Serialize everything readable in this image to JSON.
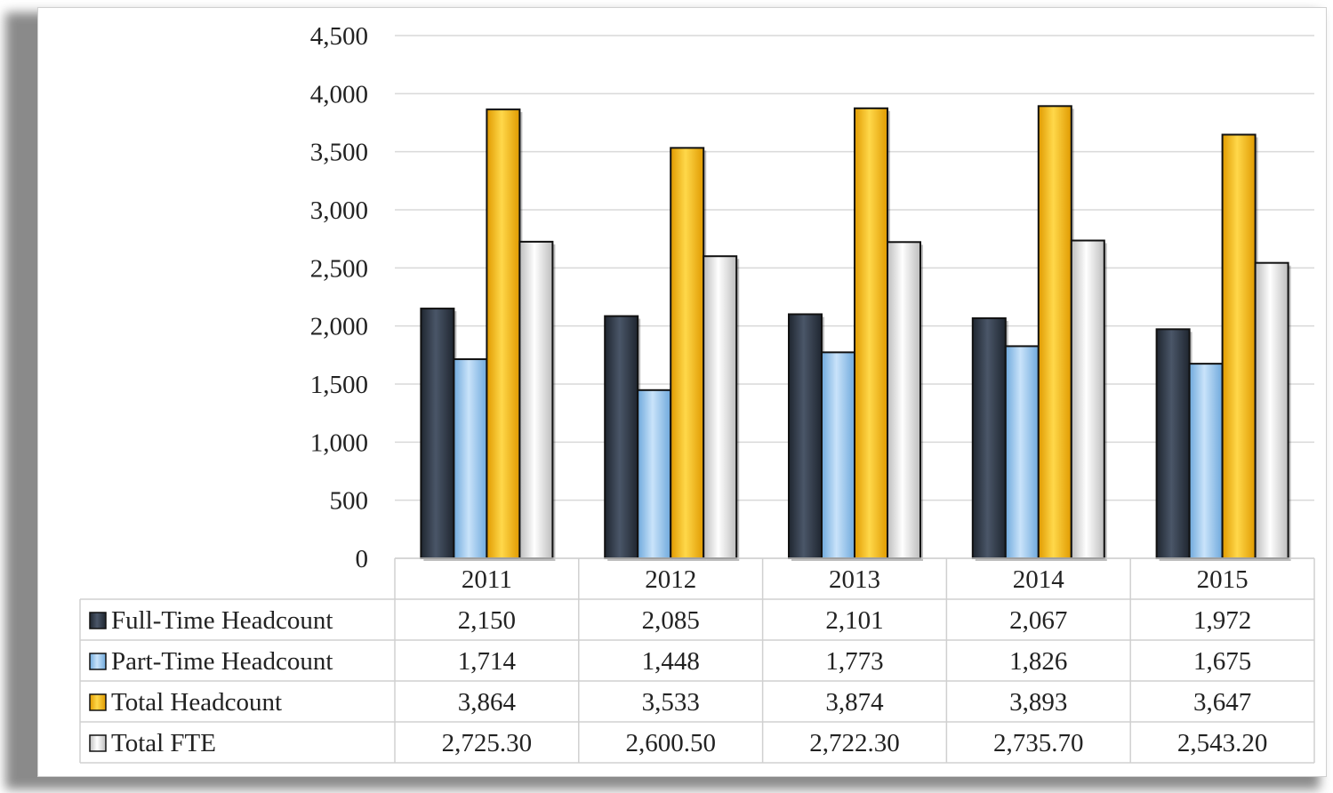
{
  "chart_data": {
    "type": "bar",
    "categories": [
      "2011",
      "2012",
      "2013",
      "2014",
      "2015"
    ],
    "series": [
      {
        "name": "Full-Time Headcount",
        "color": "#333d4c",
        "values": [
          2150,
          2085,
          2101,
          2067,
          1972
        ],
        "table_values": [
          "2,150",
          "2,085",
          "2,101",
          "2,067",
          "1,972"
        ]
      },
      {
        "name": "Part-Time  Headcount",
        "color": "#9ccaf0",
        "values": [
          1714,
          1448,
          1773,
          1826,
          1675
        ],
        "table_values": [
          "1,714",
          "1,448",
          "1,773",
          "1,826",
          "1,675"
        ]
      },
      {
        "name": "Total  Headcount",
        "color": "#f5b800",
        "values": [
          3864,
          3533,
          3874,
          3893,
          3647
        ],
        "table_values": [
          "3,864",
          "3,533",
          "3,874",
          "3,893",
          "3,647"
        ]
      },
      {
        "name": "Total  FTE",
        "color": "#e4e4e4",
        "values": [
          2725.3,
          2600.5,
          2722.3,
          2735.7,
          2543.2
        ],
        "table_values": [
          "2,725.30",
          "2,600.50",
          "2,722.30",
          "2,735.70",
          "2,543.20"
        ]
      }
    ],
    "ylim": [
      0,
      4500
    ],
    "yticks": [
      0,
      500,
      1000,
      1500,
      2000,
      2500,
      3000,
      3500,
      4000,
      4500
    ],
    "ytick_labels": [
      "0",
      "500",
      "1,000",
      "1,500",
      "2,000",
      "2,500",
      "3,000",
      "3,500",
      "4,000",
      "4,500"
    ],
    "grid": true,
    "legend": "data-table-left"
  }
}
